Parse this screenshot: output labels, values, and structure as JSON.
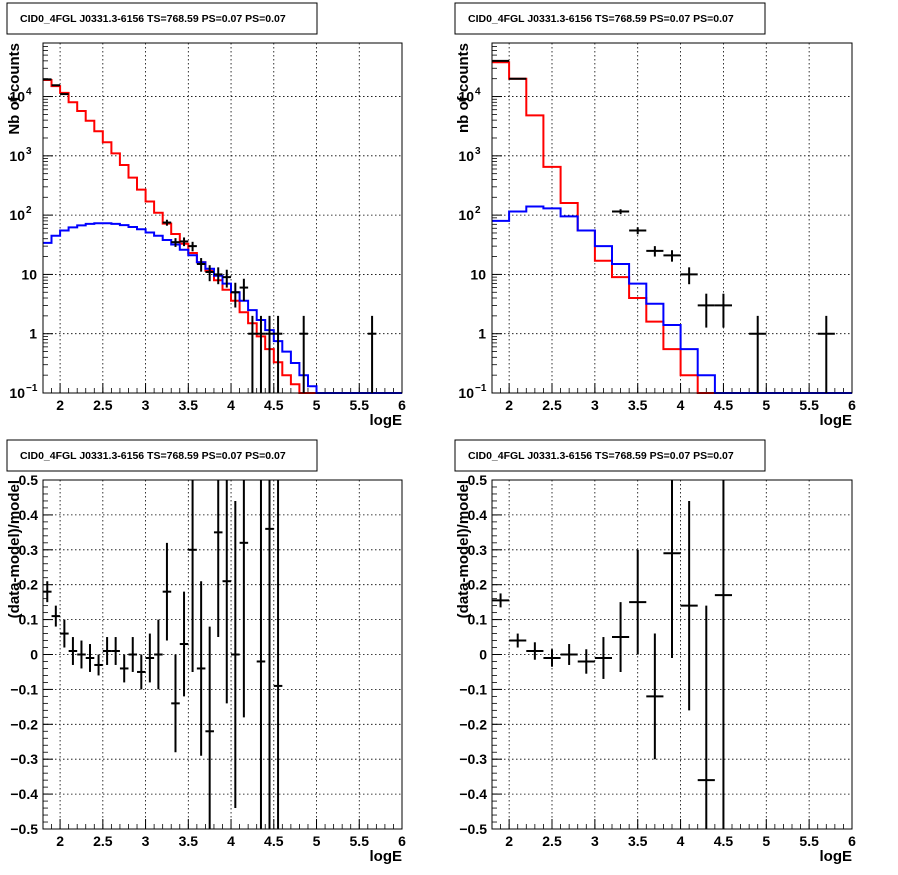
{
  "panels": [
    {
      "title": "CID0_4FGL J0331.3-6156 TS=768.59 PS=0.07 PS=0.07",
      "chart_data": {
        "type": "line",
        "scale_y": "log",
        "xlabel": "logE",
        "ylabel": "Nb of counts",
        "xlim": [
          1.8,
          6.0
        ],
        "ylim": [
          0.1,
          80000
        ],
        "grid": true,
        "x_ticks": [
          "2",
          "2.5",
          "3",
          "3.5",
          "4",
          "4.5",
          "5",
          "5.5",
          "6"
        ],
        "y_ticks": [
          {
            "v": 0.1,
            "label": "10",
            "sup": "−1"
          },
          {
            "v": 1,
            "label": "1",
            "sup": ""
          },
          {
            "v": 10,
            "label": "10",
            "sup": ""
          },
          {
            "v": 100,
            "label": "10",
            "sup": "2"
          },
          {
            "v": 1000,
            "label": "10",
            "sup": "3"
          },
          {
            "v": 10000,
            "label": "10",
            "sup": "4"
          }
        ],
        "bin_edges_start": 1.8,
        "bin_width": 0.1,
        "series": [
          {
            "color": "#ff0000",
            "style": "hist",
            "values": [
              19000,
              15000,
              11500,
              8000,
              5700,
              3900,
              2600,
              1700,
              1100,
              700,
              430,
              270,
              170,
              110,
              72,
              48,
              33,
              23,
              16,
              11.5,
              8,
              5.5,
              3.6,
              2.3,
              1.5,
              0.9,
              0.55,
              0.33,
              0.2,
              0.14,
              0.1,
              0.1,
              0.1,
              0.1,
              0.1,
              0.1,
              0.1,
              0.1,
              0.1,
              0.1,
              0.1,
              0.1
            ]
          },
          {
            "color": "#0000ff",
            "style": "hist",
            "values": [
              34,
              45,
              55,
              62,
              67,
              71,
              73,
              73,
              71,
              68,
              63,
              58,
              51,
              45,
              38,
              32,
              26,
              21,
              16,
              12.5,
              9.5,
              7,
              5,
              3.6,
              2.5,
              1.7,
              1.15,
              0.75,
              0.5,
              0.32,
              0.2,
              0.13,
              0.1,
              0.1,
              0.1,
              0.1,
              0.1,
              0.1,
              0.1,
              0.1,
              0.1,
              0.1
            ]
          }
        ],
        "points": [
          {
            "x": 1.85,
            "y": 19500
          },
          {
            "x": 1.95,
            "y": 15500
          },
          {
            "x": 2.05,
            "y": 11000
          },
          {
            "x": 3.25,
            "y": 75
          },
          {
            "x": 3.35,
            "y": 35
          },
          {
            "x": 3.45,
            "y": 36
          },
          {
            "x": 3.55,
            "y": 30
          },
          {
            "x": 3.65,
            "y": 15
          },
          {
            "x": 3.75,
            "y": 11
          },
          {
            "x": 3.85,
            "y": 10
          },
          {
            "x": 3.95,
            "y": 9
          },
          {
            "x": 4.05,
            "y": 5
          },
          {
            "x": 4.15,
            "y": 6
          },
          {
            "x": 4.25,
            "y": 1
          },
          {
            "x": 4.35,
            "y": 1
          },
          {
            "x": 4.45,
            "y": 1
          },
          {
            "x": 4.55,
            "y": 1
          },
          {
            "x": 4.85,
            "y": 1
          },
          {
            "x": 5.65,
            "y": 1
          }
        ]
      }
    },
    {
      "title": "CID0_4FGL J0331.3-6156 TS=768.59 PS=0.07 PS=0.07",
      "chart_data": {
        "type": "line",
        "scale_y": "log",
        "xlabel": "logE",
        "ylabel": "nb of counts",
        "xlim": [
          1.8,
          6.0
        ],
        "ylim": [
          0.1,
          80000
        ],
        "grid": true,
        "x_ticks": [
          "2",
          "2.5",
          "3",
          "3.5",
          "4",
          "4.5",
          "5",
          "5.5",
          "6"
        ],
        "y_ticks": [
          {
            "v": 0.1,
            "label": "10",
            "sup": "−1"
          },
          {
            "v": 1,
            "label": "1",
            "sup": ""
          },
          {
            "v": 10,
            "label": "10",
            "sup": ""
          },
          {
            "v": 100,
            "label": "10",
            "sup": "2"
          },
          {
            "v": 1000,
            "label": "10",
            "sup": "3"
          },
          {
            "v": 10000,
            "label": "10",
            "sup": "4"
          }
        ],
        "bin_edges_start": 1.8,
        "bin_width": 0.2,
        "series": [
          {
            "color": "#ff0000",
            "style": "hist",
            "values": [
              38000,
              20000,
              4800,
              650,
              160,
              55,
              17,
              9,
              4,
              1.6,
              0.55,
              0.2,
              0.1,
              0.1,
              0.1,
              0.1,
              0.1,
              0.1,
              0.1,
              0.1,
              0.1
            ]
          },
          {
            "color": "#0000ff",
            "style": "hist",
            "values": [
              80,
              115,
              140,
              130,
              95,
              55,
              30,
              15,
              7,
              3.2,
              1.4,
              0.55,
              0.2,
              0.1,
              0.1,
              0.1,
              0.1,
              0.1,
              0.1,
              0.1,
              0.1
            ]
          }
        ],
        "points": [
          {
            "x": 1.9,
            "y": 40000
          },
          {
            "x": 2.1,
            "y": 20000
          },
          {
            "x": 3.3,
            "y": 115
          },
          {
            "x": 3.5,
            "y": 55
          },
          {
            "x": 3.7,
            "y": 25
          },
          {
            "x": 3.9,
            "y": 21
          },
          {
            "x": 4.1,
            "y": 10
          },
          {
            "x": 4.3,
            "y": 3
          },
          {
            "x": 4.5,
            "y": 3
          },
          {
            "x": 4.9,
            "y": 1
          },
          {
            "x": 5.7,
            "y": 1
          }
        ]
      }
    },
    {
      "title": "CID0_4FGL J0331.3-6156 TS=768.59 PS=0.07 PS=0.07",
      "chart_data": {
        "type": "scatter",
        "xlabel": "logE",
        "ylabel": "(data-model)/model",
        "xlim": [
          1.8,
          6.0
        ],
        "ylim": [
          -0.5,
          0.5
        ],
        "grid": true,
        "x_ticks": [
          "2",
          "2.5",
          "3",
          "3.5",
          "4",
          "4.5",
          "5",
          "5.5",
          "6"
        ],
        "y_ticks": [
          "−0.5",
          "−0.4",
          "−0.3",
          "−0.2",
          "−0.1",
          "0",
          "0.1",
          "0.2",
          "0.3",
          "0.4",
          "0.5"
        ],
        "xerr": 0.05,
        "points": [
          {
            "x": 1.85,
            "y": 0.18,
            "e": 0.03
          },
          {
            "x": 1.95,
            "y": 0.11,
            "e": 0.03
          },
          {
            "x": 2.05,
            "y": 0.06,
            "e": 0.04
          },
          {
            "x": 2.15,
            "y": 0.01,
            "e": 0.04
          },
          {
            "x": 2.25,
            "y": 0.0,
            "e": 0.04
          },
          {
            "x": 2.35,
            "y": -0.01,
            "e": 0.04
          },
          {
            "x": 2.45,
            "y": -0.03,
            "e": 0.03
          },
          {
            "x": 2.55,
            "y": 0.01,
            "e": 0.04
          },
          {
            "x": 2.65,
            "y": 0.01,
            "e": 0.04
          },
          {
            "x": 2.75,
            "y": -0.04,
            "e": 0.04
          },
          {
            "x": 2.85,
            "y": 0.0,
            "e": 0.05
          },
          {
            "x": 2.95,
            "y": -0.05,
            "e": 0.05
          },
          {
            "x": 3.05,
            "y": -0.01,
            "e": 0.07
          },
          {
            "x": 3.15,
            "y": 0.0,
            "e": 0.1
          },
          {
            "x": 3.25,
            "y": 0.18,
            "e": 0.14
          },
          {
            "x": 3.35,
            "y": -0.14,
            "e": 0.14
          },
          {
            "x": 3.45,
            "y": 0.03,
            "e": 0.15
          },
          {
            "x": 3.55,
            "y": 0.3,
            "e": 0.35
          },
          {
            "x": 3.65,
            "y": -0.04,
            "e": 0.25
          },
          {
            "x": 3.75,
            "y": -0.22,
            "e": 0.3
          },
          {
            "x": 3.85,
            "y": 0.35,
            "e": 0.3
          },
          {
            "x": 3.95,
            "y": 0.21,
            "e": 0.35
          },
          {
            "x": 4.05,
            "y": 0.0,
            "e": 0.44
          },
          {
            "x": 4.15,
            "y": 0.32,
            "e": 0.5
          },
          {
            "x": 4.35,
            "y": -0.02,
            "e": 0.9
          },
          {
            "x": 4.45,
            "y": 0.36,
            "e": 0.9
          },
          {
            "x": 4.55,
            "y": -0.09,
            "e": 0.9
          }
        ]
      }
    },
    {
      "title": "CID0_4FGL J0331.3-6156 TS=768.59 PS=0.07 PS=0.07",
      "chart_data": {
        "type": "scatter",
        "xlabel": "logE",
        "ylabel": "(data-model)/model",
        "xlim": [
          1.8,
          6.0
        ],
        "ylim": [
          -0.5,
          0.5
        ],
        "grid": true,
        "x_ticks": [
          "2",
          "2.5",
          "3",
          "3.5",
          "4",
          "4.5",
          "5",
          "5.5",
          "6"
        ],
        "y_ticks": [
          "−0.5",
          "−0.4",
          "−0.3",
          "−0.2",
          "−0.1",
          "0",
          "0.1",
          "0.2",
          "0.3",
          "0.4",
          "0.5"
        ],
        "xerr": 0.1,
        "points": [
          {
            "x": 1.9,
            "y": 0.155,
            "e": 0.02
          },
          {
            "x": 2.1,
            "y": 0.04,
            "e": 0.02
          },
          {
            "x": 2.3,
            "y": 0.01,
            "e": 0.025
          },
          {
            "x": 2.5,
            "y": -0.01,
            "e": 0.025
          },
          {
            "x": 2.7,
            "y": 0.0,
            "e": 0.03
          },
          {
            "x": 2.9,
            "y": -0.02,
            "e": 0.035
          },
          {
            "x": 3.1,
            "y": -0.01,
            "e": 0.06
          },
          {
            "x": 3.3,
            "y": 0.05,
            "e": 0.1
          },
          {
            "x": 3.5,
            "y": 0.15,
            "e": 0.15
          },
          {
            "x": 3.7,
            "y": -0.12,
            "e": 0.18
          },
          {
            "x": 3.9,
            "y": 0.29,
            "e": 0.3
          },
          {
            "x": 4.1,
            "y": 0.14,
            "e": 0.3
          },
          {
            "x": 4.3,
            "y": -0.36,
            "e": 0.5
          },
          {
            "x": 4.5,
            "y": 0.17,
            "e": 0.8
          }
        ]
      }
    }
  ]
}
